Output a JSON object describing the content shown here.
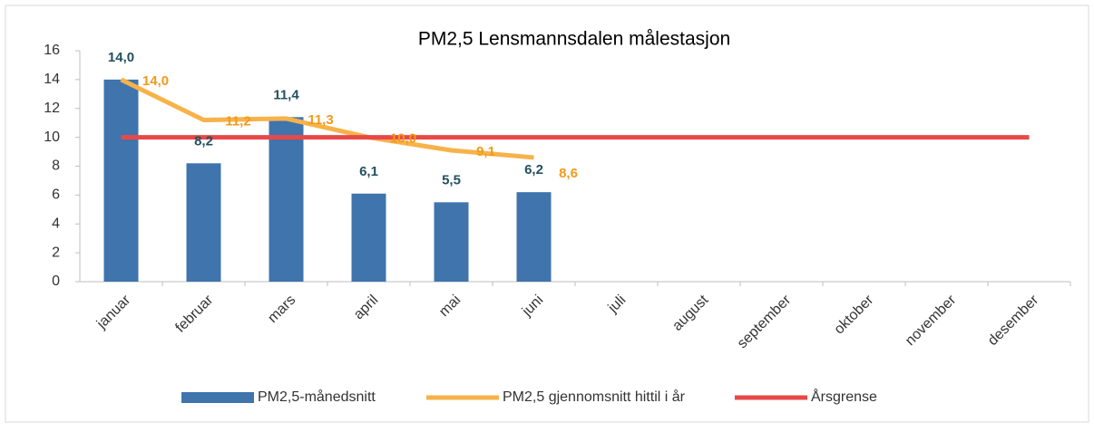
{
  "chart_data": {
    "type": "bar",
    "title": "PM2,5 Lensmannsdalen målestasjon",
    "categories": [
      "januar",
      "februar",
      "mars",
      "april",
      "mai",
      "juni",
      "juli",
      "august",
      "september",
      "oktober",
      "november",
      "desember"
    ],
    "series": [
      {
        "name": "PM2,5-månedsnitt",
        "type": "bar",
        "color": "#3f74ad",
        "label_color": "#24505f",
        "values": [
          14.0,
          8.2,
          11.4,
          6.1,
          5.5,
          6.2,
          null,
          null,
          null,
          null,
          null,
          null
        ],
        "value_labels": [
          "14,0",
          "8,2",
          "11,4",
          "6,1",
          "5,5",
          "6,2",
          null,
          null,
          null,
          null,
          null,
          null
        ]
      },
      {
        "name": "PM2,5 gjennomsnitt hittil i år",
        "type": "line",
        "color": "#f7b24a",
        "label_color": "#f19a1a",
        "values": [
          14.0,
          11.2,
          11.3,
          10.0,
          9.1,
          8.6,
          null,
          null,
          null,
          null,
          null,
          null
        ],
        "value_labels": [
          "14,0",
          "11,2",
          "11,3",
          "10,0",
          "9,1",
          "8,6",
          null,
          null,
          null,
          null,
          null,
          null
        ]
      },
      {
        "name": "Årsgrense",
        "type": "line",
        "color": "#e84848",
        "values": [
          10,
          10,
          10,
          10,
          10,
          10,
          10,
          10,
          10,
          10,
          10,
          10
        ]
      }
    ],
    "ylim": [
      0,
      16
    ],
    "yticks": [
      0,
      2,
      4,
      6,
      8,
      10,
      12,
      14,
      16
    ]
  }
}
